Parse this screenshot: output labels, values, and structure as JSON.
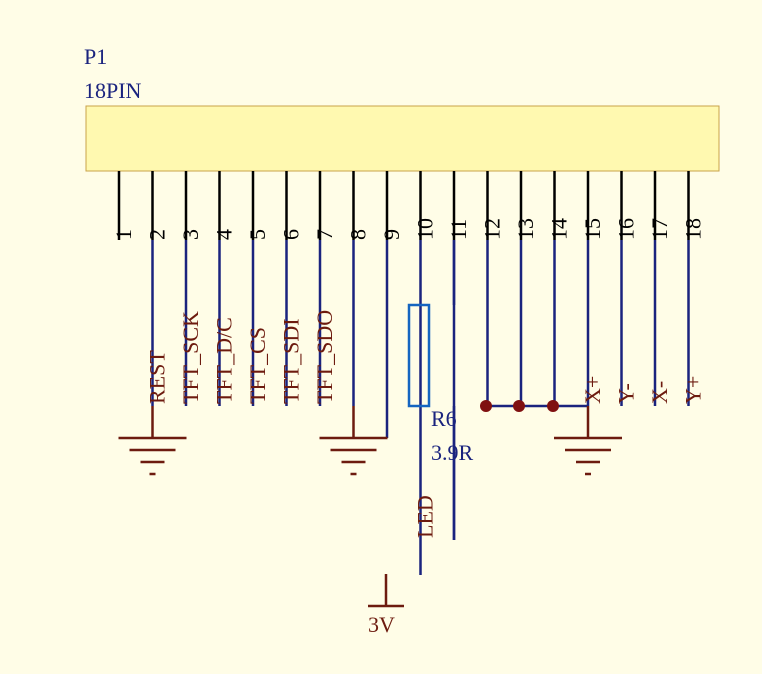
{
  "component": {
    "designator": "P1",
    "value": "18PIN"
  },
  "pins": [
    {
      "number": "1",
      "net": ""
    },
    {
      "number": "2",
      "net": "REST"
    },
    {
      "number": "3",
      "net": "TFT_SCK"
    },
    {
      "number": "4",
      "net": "TFT_D/C"
    },
    {
      "number": "5",
      "net": "TFT_CS"
    },
    {
      "number": "6",
      "net": "TFT_SDI"
    },
    {
      "number": "7",
      "net": "TFT_SDO"
    },
    {
      "number": "8",
      "net": ""
    },
    {
      "number": "9",
      "net": ""
    },
    {
      "number": "10",
      "net": "LED"
    },
    {
      "number": "11",
      "net": ""
    },
    {
      "number": "12",
      "net": ""
    },
    {
      "number": "13",
      "net": ""
    },
    {
      "number": "14",
      "net": ""
    },
    {
      "number": "15",
      "net": "X+"
    },
    {
      "number": "16",
      "net": "Y-"
    },
    {
      "number": "17",
      "net": "X-"
    },
    {
      "number": "18",
      "net": "Y+"
    }
  ],
  "resistor": {
    "designator": "R6",
    "value": "3.9R"
  },
  "power": {
    "label": "3V"
  },
  "colors": {
    "background": "#fffde7",
    "body_fill": "#fff9b0",
    "wire": "#1a237e",
    "pin_stub": "#000000",
    "ground": "#6d1b0f",
    "junction": "#7f1010",
    "resistor": "#1565c0"
  }
}
